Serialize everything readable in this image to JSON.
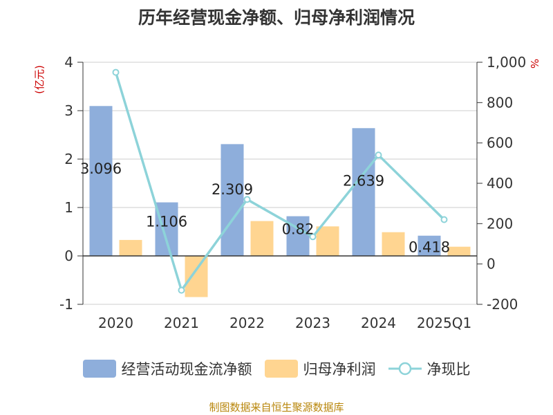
{
  "chart_data": {
    "type": "bar",
    "title": "历年经营现金净额、归母净利润情况",
    "categories": [
      "2020",
      "2021",
      "2022",
      "2023",
      "2024",
      "2025Q1"
    ],
    "series": [
      {
        "name": "经营活动现金流净额",
        "kind": "bar",
        "axis": "left",
        "color": "#8eaedb",
        "values": [
          3.096,
          1.106,
          2.309,
          0.82,
          2.639,
          0.418
        ]
      },
      {
        "name": "归母净利润",
        "kind": "bar",
        "axis": "left",
        "color": "#ffd591",
        "values": [
          0.33,
          -0.85,
          0.72,
          0.61,
          0.49,
          0.19
        ]
      },
      {
        "name": "净现比",
        "kind": "line",
        "axis": "right",
        "color": "#8dd3d9",
        "values": [
          950,
          -130,
          320,
          135,
          540,
          220
        ]
      }
    ],
    "data_labels": [
      "3.096",
      "1.106",
      "2.309",
      "0.82",
      "2.639",
      "0.418"
    ],
    "left_axis": {
      "label": "(亿元)",
      "ylim": [
        -1,
        4
      ],
      "ticks": [
        "-1",
        "0",
        "1",
        "2",
        "3",
        "4"
      ]
    },
    "right_axis": {
      "label": "%",
      "ylim": [
        -200,
        1000
      ],
      "ticks": [
        "-200",
        "0",
        "200",
        "400",
        "600",
        "800",
        "1,000"
      ]
    },
    "grid": true,
    "legend_position": "bottom"
  },
  "source_text": "制图数据来自恒生聚源数据库"
}
